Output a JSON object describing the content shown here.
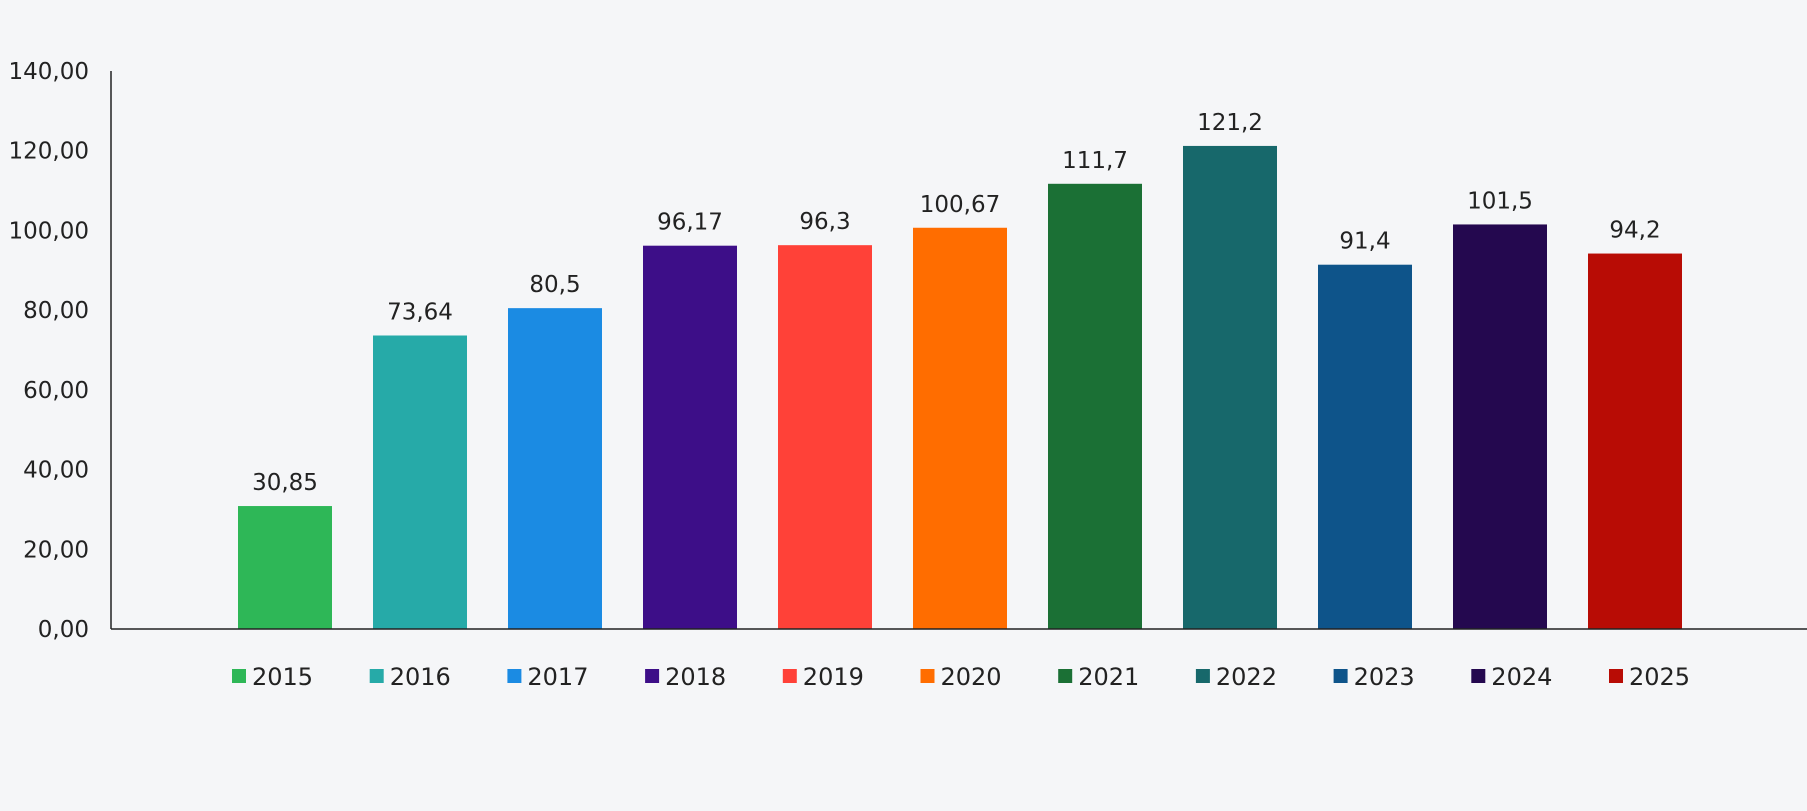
{
  "chart_data": {
    "type": "bar",
    "title": "",
    "xlabel": "",
    "ylabel": "",
    "categories": [
      "2015",
      "2016",
      "2017",
      "2018",
      "2019",
      "2020",
      "2021",
      "2022",
      "2023",
      "2024",
      "2025"
    ],
    "values": [
      30.85,
      73.64,
      80.5,
      96.17,
      96.3,
      100.67,
      111.7,
      121.2,
      91.4,
      101.5,
      94.2
    ],
    "data_labels": [
      "30,85",
      "73,64",
      "80,5",
      "96,17",
      "96,3",
      "100,67",
      "111,7",
      "121,2",
      "91,4",
      "101,5",
      "94,2"
    ],
    "colors": [
      "#2eb757",
      "#26aaa8",
      "#1b8be3",
      "#3d0e88",
      "#ff4138",
      "#ff6d00",
      "#1b7035",
      "#17686b",
      "#0e548a",
      "#24084f",
      "#b80c05"
    ],
    "ylim": [
      0,
      140
    ],
    "yticks": [
      0,
      20,
      40,
      60,
      80,
      100,
      120,
      140
    ],
    "ytick_labels": [
      "0,00",
      "20,00",
      "40,00",
      "60,00",
      "80,00",
      "100,00",
      "120,00",
      "140,00"
    ],
    "legend": {
      "position": "bottom",
      "entries": [
        "2015",
        "2016",
        "2017",
        "2018",
        "2019",
        "2020",
        "2021",
        "2022",
        "2023",
        "2024",
        "2025"
      ]
    },
    "grid": false
  }
}
